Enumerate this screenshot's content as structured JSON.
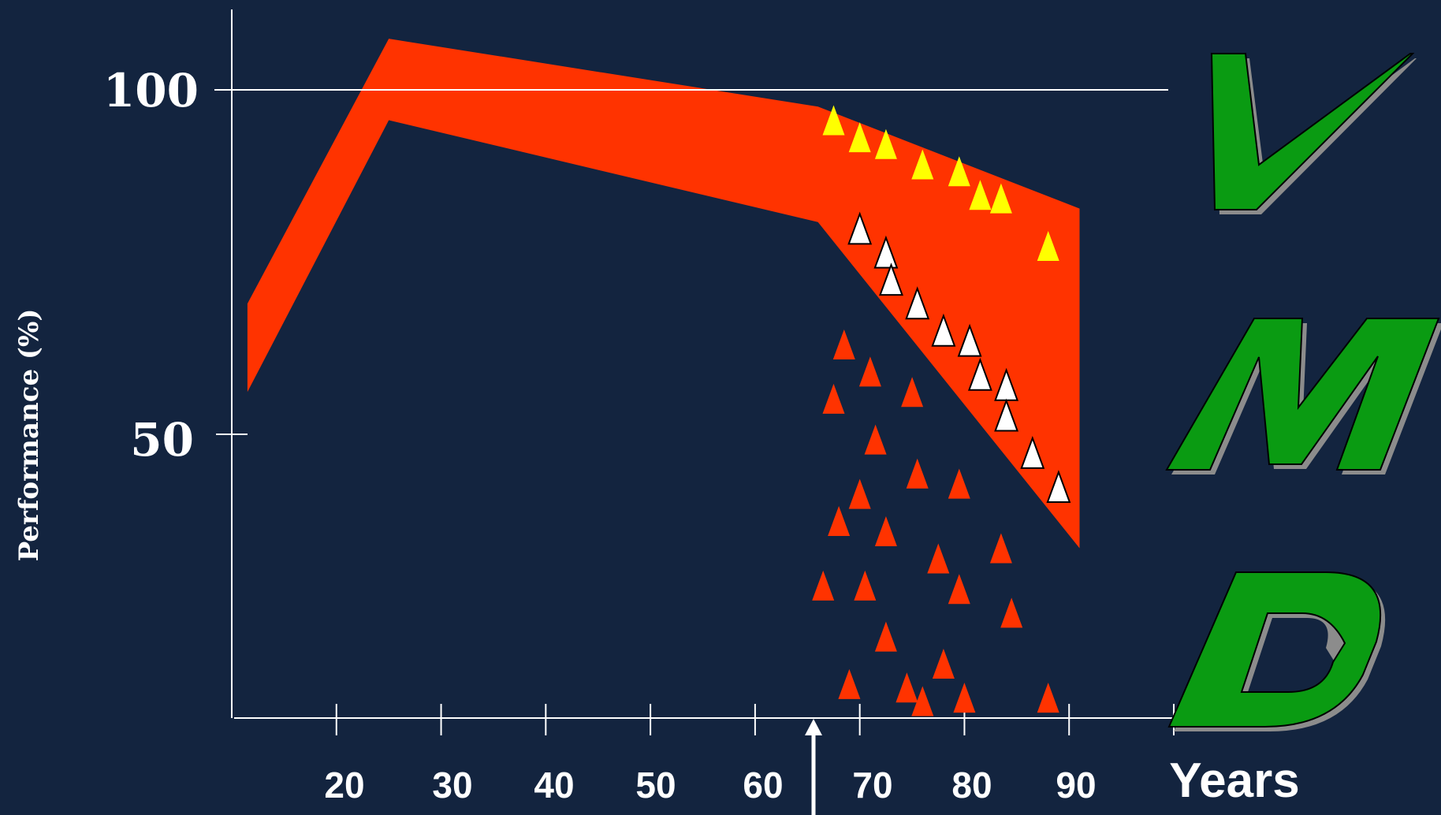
{
  "chart_data": {
    "type": "scatter",
    "title": "",
    "xlabel": "Years",
    "ylabel": "Performance (%)",
    "x_ticks": [
      "20",
      "30",
      "40",
      "50",
      "60",
      "70",
      "80",
      "90"
    ],
    "y_ticks": [
      "50",
      "100"
    ],
    "xlim": [
      10,
      100
    ],
    "ylim": [
      8,
      113
    ],
    "grid": "horizontal line at 100",
    "arrow_marker_x": 66,
    "band": {
      "color": "#ff3300",
      "upper": [
        {
          "x": 11.5,
          "y": 69
        },
        {
          "x": 25,
          "y": 108
        },
        {
          "x": 66,
          "y": 98
        },
        {
          "x": 91,
          "y": 83
        }
      ],
      "lower": [
        {
          "x": 11.5,
          "y": 56
        },
        {
          "x": 25,
          "y": 96
        },
        {
          "x": 66,
          "y": 81
        },
        {
          "x": 91,
          "y": 33
        }
      ]
    },
    "series": [
      {
        "color": "#ffff00",
        "points": [
          {
            "x": 67.5,
            "y": 96
          },
          {
            "x": 70,
            "y": 93.5
          },
          {
            "x": 72.5,
            "y": 92.5
          },
          {
            "x": 76,
            "y": 89.5
          },
          {
            "x": 79.5,
            "y": 88.5
          },
          {
            "x": 81.5,
            "y": 85
          },
          {
            "x": 83.5,
            "y": 84.5
          },
          {
            "x": 88,
            "y": 77.5
          }
        ]
      },
      {
        "color": "#ffffff",
        "points": [
          {
            "x": 70,
            "y": 80
          },
          {
            "x": 72.5,
            "y": 76.5
          },
          {
            "x": 73,
            "y": 72.5
          },
          {
            "x": 75.5,
            "y": 69
          },
          {
            "x": 78,
            "y": 65
          },
          {
            "x": 80.5,
            "y": 63.5
          },
          {
            "x": 81.5,
            "y": 58.5
          },
          {
            "x": 84,
            "y": 57
          },
          {
            "x": 84,
            "y": 52.5
          },
          {
            "x": 86.5,
            "y": 47
          },
          {
            "x": 89,
            "y": 42
          }
        ]
      },
      {
        "color": "#ff3300",
        "points": [
          {
            "x": 68.5,
            "y": 63
          },
          {
            "x": 71,
            "y": 59
          },
          {
            "x": 75,
            "y": 56
          },
          {
            "x": 67.5,
            "y": 55
          },
          {
            "x": 71.5,
            "y": 49
          },
          {
            "x": 75.5,
            "y": 44
          },
          {
            "x": 79.5,
            "y": 42.5
          },
          {
            "x": 70,
            "y": 41
          },
          {
            "x": 68,
            "y": 37
          },
          {
            "x": 72.5,
            "y": 35.5
          },
          {
            "x": 77.5,
            "y": 31.5
          },
          {
            "x": 83.5,
            "y": 33
          },
          {
            "x": 66.5,
            "y": 27.5
          },
          {
            "x": 70.5,
            "y": 27.5
          },
          {
            "x": 79.5,
            "y": 27
          },
          {
            "x": 84.5,
            "y": 23.5
          },
          {
            "x": 72.5,
            "y": 20
          },
          {
            "x": 78,
            "y": 16
          },
          {
            "x": 69,
            "y": 13
          },
          {
            "x": 74.5,
            "y": 12.5
          },
          {
            "x": 76,
            "y": 10.5
          },
          {
            "x": 80,
            "y": 11
          },
          {
            "x": 88,
            "y": 11
          }
        ]
      }
    ]
  },
  "side_letters": [
    {
      "text": "V",
      "color": "#0a9b12"
    },
    {
      "text": "M",
      "color": "#0a9b12"
    },
    {
      "text": "D",
      "color": "#0a9b12"
    }
  ],
  "colors": {
    "background": "#13243f",
    "axis": "#ffffff",
    "letter_fill": "#0a9b12",
    "letter_shadow": "#8c8c8c"
  }
}
